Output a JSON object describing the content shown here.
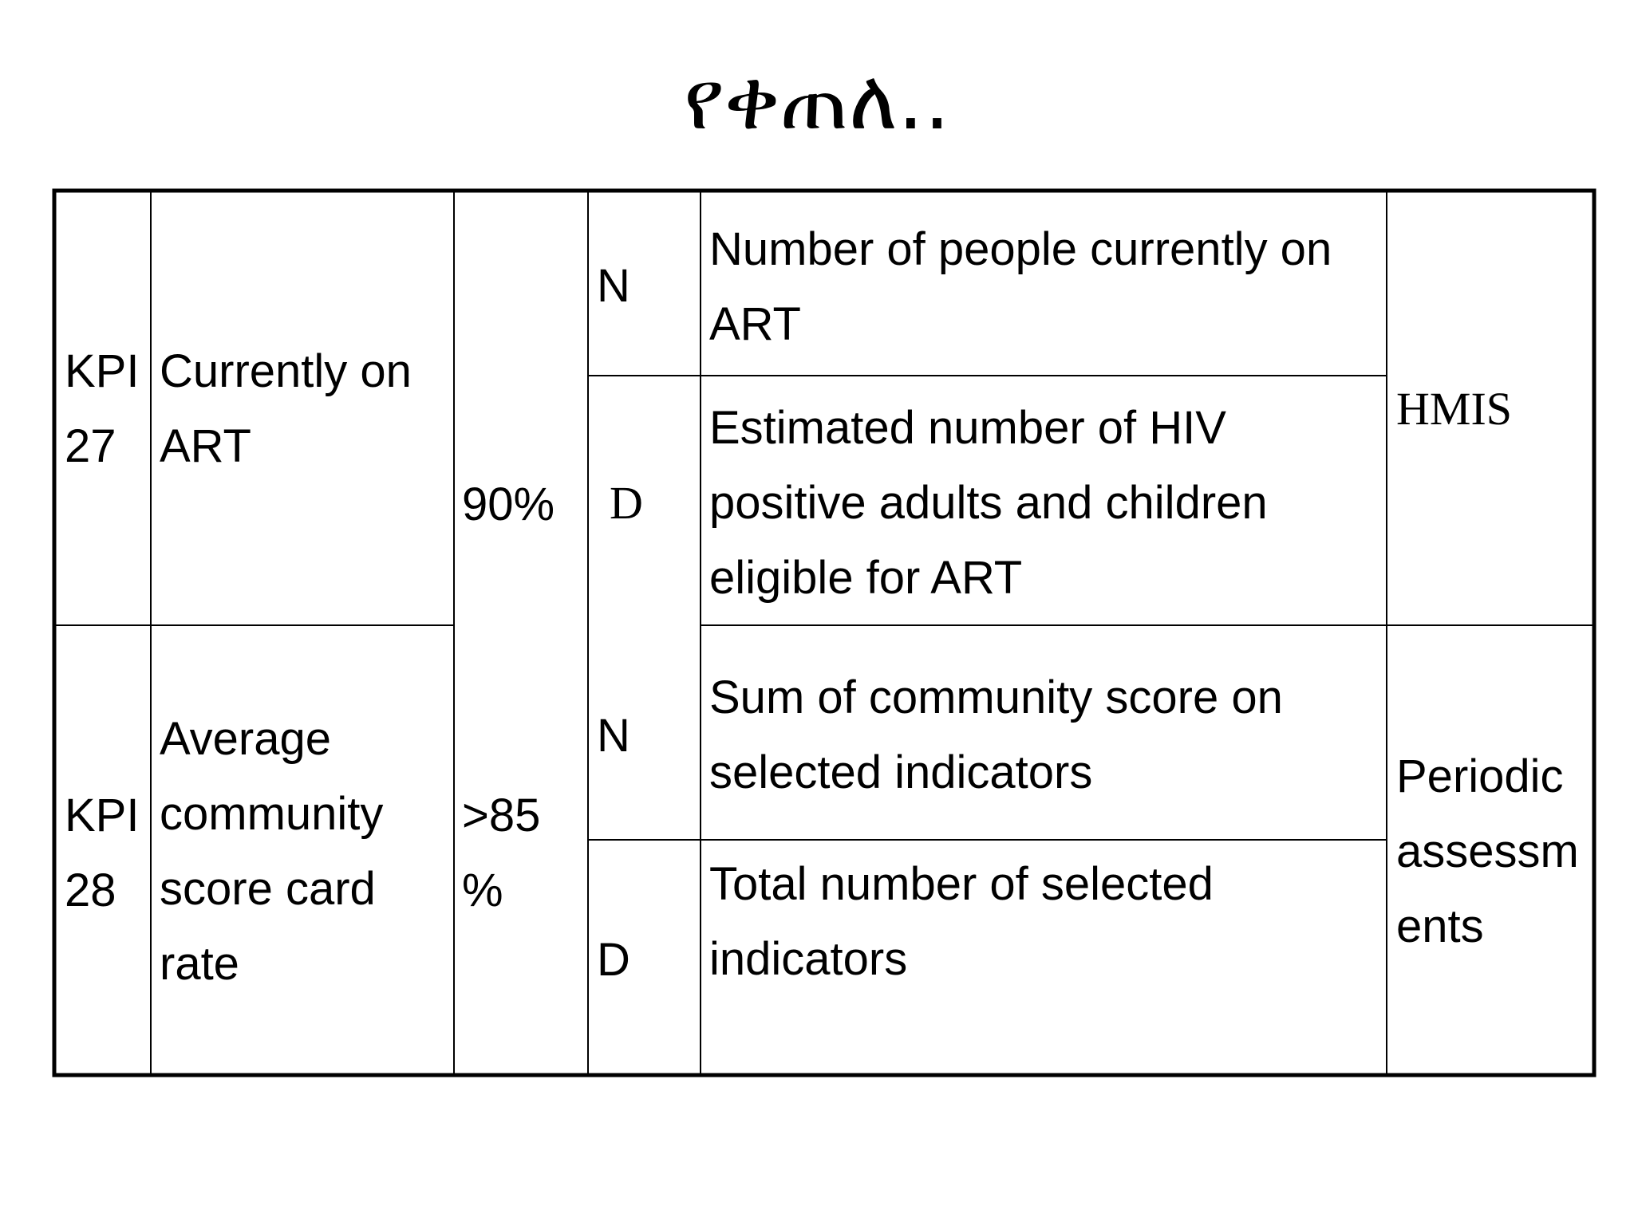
{
  "title": "የቀጠለ..",
  "table": {
    "rows": [
      {
        "kpi": "KPI 27",
        "indicator": "Currently on ART",
        "target": "90%",
        "numerator_label": "N",
        "numerator": "Number of people currently on ART",
        "denominator_label": "D",
        "denominator": "Estimated number of HIV positive adults and children eligible for ART",
        "source": "HMIS"
      },
      {
        "kpi": "KPI 28",
        "indicator": "Average community score card rate",
        "target": ">85 %",
        "numerator_label": "N",
        "numerator": "Sum of community score on selected indicators",
        "denominator_label": "D",
        "denominator": "Total number of selected indicators",
        "source": "Periodic assessments"
      }
    ]
  }
}
